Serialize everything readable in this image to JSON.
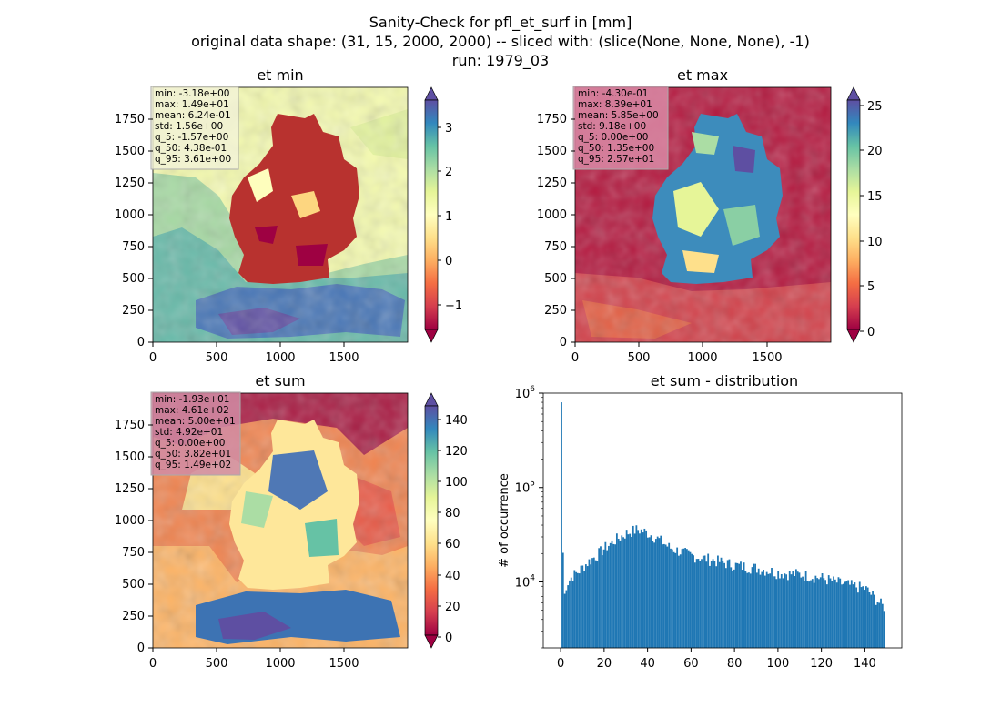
{
  "figure": {
    "title_lines": [
      "Sanity-Check for pfl_et_surf in [mm]",
      "original data shape: (31, 15, 2000, 2000) -- sliced with: (slice(None, None, None), -1)",
      "run: 1979_03"
    ]
  },
  "panels": [
    {
      "key": "et_min",
      "title": "et min",
      "stats": [
        "min: -3.18e+00",
        "max: 1.49e+01",
        "mean: 6.24e-01",
        "std: 1.56e+00",
        "q_5: -1.57e+00",
        "q_50: 4.38e-01",
        "q_95: 3.61e+00"
      ],
      "x_ticks": [
        "0",
        "500",
        "1000",
        "1500"
      ],
      "y_ticks": [
        "0",
        "250",
        "500",
        "750",
        "1000",
        "1250",
        "1500",
        "1750"
      ],
      "colorbar": {
        "ticks": [
          "3",
          "2",
          "1",
          "0",
          "−1"
        ],
        "range": [
          -1.57,
          3.61
        ],
        "extend": "both"
      }
    },
    {
      "key": "et_max",
      "title": "et max",
      "stats": [
        "min: -4.30e-01",
        "max: 8.39e+01",
        "mean: 5.85e+00",
        "std: 9.18e+00",
        "q_5: 0.00e+00",
        "q_50: 1.35e+00",
        "q_95: 2.57e+01"
      ],
      "x_ticks": [
        "0",
        "500",
        "1000",
        "1500"
      ],
      "y_ticks": [
        "0",
        "250",
        "500",
        "750",
        "1000",
        "1250",
        "1500",
        "1750"
      ],
      "colorbar": {
        "ticks": [
          "25",
          "20",
          "15",
          "10",
          "5",
          "0"
        ],
        "range": [
          0,
          25.7
        ],
        "extend": "both"
      }
    },
    {
      "key": "et_sum",
      "title": "et sum",
      "stats": [
        "min: -1.93e+01",
        "max: 4.61e+02",
        "mean: 5.00e+01",
        "std: 4.92e+01",
        "q_5: 0.00e+00",
        "q_50: 3.82e+01",
        "q_95: 1.49e+02"
      ],
      "x_ticks": [
        "0",
        "500",
        "1000",
        "1500"
      ],
      "y_ticks": [
        "0",
        "250",
        "500",
        "750",
        "1000",
        "1250",
        "1500",
        "1750"
      ],
      "colorbar": {
        "ticks": [
          "140",
          "120",
          "100",
          "80",
          "60",
          "40",
          "20",
          "0"
        ],
        "range": [
          0,
          149
        ],
        "extend": "both"
      }
    }
  ],
  "colormap": "Spectral",
  "colors": {
    "bar": "#1f77b4"
  },
  "chart_data": [
    {
      "type": "heatmap",
      "title": "et min",
      "xlim": [
        0,
        2000
      ],
      "ylim": [
        0,
        2000
      ],
      "colorbar_range": [
        -1.57,
        3.61
      ]
    },
    {
      "type": "heatmap",
      "title": "et max",
      "xlim": [
        0,
        2000
      ],
      "ylim": [
        0,
        2000
      ],
      "colorbar_range": [
        0,
        25.7
      ]
    },
    {
      "type": "heatmap",
      "title": "et sum",
      "xlim": [
        0,
        2000
      ],
      "ylim": [
        0,
        2000
      ],
      "colorbar_range": [
        0,
        149
      ]
    },
    {
      "type": "bar",
      "title": "et sum - distribution",
      "xlabel": "",
      "ylabel": "# of occurrence",
      "yscale": "log",
      "ylim": [
        2000,
        1000000
      ],
      "xlim": [
        -8,
        157
      ],
      "x_ticks": [
        "0",
        "20",
        "40",
        "60",
        "80",
        "100",
        "120",
        "140"
      ],
      "y_ticks": [
        "10^4",
        "10^5",
        "10^6"
      ],
      "bins": [
        0,
        1,
        2,
        3,
        5,
        8,
        12,
        16,
        20,
        25,
        30,
        35,
        40,
        45,
        50,
        60,
        70,
        80,
        90,
        100,
        110,
        120,
        130,
        140,
        145,
        148
      ],
      "values": [
        800000,
        6000,
        9000,
        10000,
        11500,
        13000,
        16000,
        19000,
        23000,
        28000,
        33000,
        36000,
        33000,
        28000,
        23000,
        19000,
        17000,
        15000,
        14000,
        12500,
        12000,
        11000,
        9500,
        8500,
        6500,
        5500
      ]
    }
  ]
}
